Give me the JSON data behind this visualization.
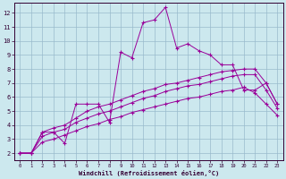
{
  "xlabel": "Windchill (Refroidissement éolien,°C)",
  "background_color": "#cce8ee",
  "line_color": "#990099",
  "grid_color": "#99bbcc",
  "xlim": [
    -0.5,
    23.5
  ],
  "ylim": [
    1.5,
    12.7
  ],
  "xticks": [
    0,
    1,
    2,
    3,
    4,
    5,
    6,
    7,
    8,
    9,
    10,
    11,
    12,
    13,
    14,
    15,
    16,
    17,
    18,
    19,
    20,
    21,
    22,
    23
  ],
  "yticks": [
    2,
    3,
    4,
    5,
    6,
    7,
    8,
    9,
    10,
    11,
    12
  ],
  "series1_x": [
    0,
    1,
    2,
    3,
    4,
    5,
    6,
    7,
    8,
    9,
    10,
    11,
    12,
    13,
    14,
    15,
    16,
    17,
    18,
    19,
    20,
    21,
    22,
    23
  ],
  "series1_y": [
    2.0,
    2.0,
    3.5,
    3.5,
    2.7,
    5.5,
    5.5,
    5.5,
    4.2,
    9.2,
    8.8,
    11.3,
    11.5,
    12.4,
    9.5,
    9.8,
    9.3,
    9.0,
    8.3,
    8.3,
    6.5,
    6.5,
    7.0,
    5.5
  ],
  "series2_x": [
    0,
    1,
    2,
    3,
    4,
    5,
    6,
    7,
    8,
    9,
    10,
    11,
    12,
    13,
    14,
    15,
    16,
    17,
    18,
    19,
    20,
    21,
    22,
    23
  ],
  "series2_y": [
    2.0,
    2.0,
    3.5,
    3.8,
    4.0,
    4.5,
    5.0,
    5.3,
    5.5,
    5.8,
    6.1,
    6.4,
    6.6,
    6.9,
    7.0,
    7.2,
    7.4,
    7.6,
    7.8,
    7.9,
    8.0,
    8.0,
    7.0,
    5.5
  ],
  "series3_x": [
    0,
    1,
    2,
    3,
    4,
    5,
    6,
    7,
    8,
    9,
    10,
    11,
    12,
    13,
    14,
    15,
    16,
    17,
    18,
    19,
    20,
    21,
    22,
    23
  ],
  "series3_y": [
    2.0,
    2.0,
    3.2,
    3.5,
    3.7,
    4.2,
    4.5,
    4.8,
    5.0,
    5.3,
    5.6,
    5.9,
    6.1,
    6.4,
    6.6,
    6.8,
    6.9,
    7.1,
    7.3,
    7.5,
    7.6,
    7.6,
    6.5,
    5.2
  ],
  "series4_x": [
    0,
    1,
    2,
    3,
    4,
    5,
    6,
    7,
    8,
    9,
    10,
    11,
    12,
    13,
    14,
    15,
    16,
    17,
    18,
    19,
    20,
    21,
    22,
    23
  ],
  "series4_y": [
    2.0,
    2.0,
    2.8,
    3.0,
    3.3,
    3.6,
    3.9,
    4.1,
    4.4,
    4.6,
    4.9,
    5.1,
    5.3,
    5.5,
    5.7,
    5.9,
    6.0,
    6.2,
    6.4,
    6.5,
    6.7,
    6.3,
    5.5,
    4.7
  ]
}
